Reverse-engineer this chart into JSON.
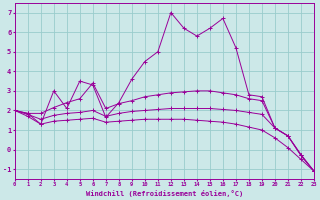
{
  "bg_color": "#cce8e8",
  "line_color": "#990099",
  "grid_color": "#99cccc",
  "xlabel": "Windchill (Refroidissement éolien,°C)",
  "xlim": [
    0,
    23
  ],
  "ylim": [
    -1.5,
    7.5
  ],
  "yticks": [
    -1,
    0,
    1,
    2,
    3,
    4,
    5,
    6,
    7
  ],
  "xticks": [
    0,
    1,
    2,
    3,
    4,
    5,
    6,
    7,
    8,
    9,
    10,
    11,
    12,
    13,
    14,
    15,
    16,
    17,
    18,
    19,
    20,
    21,
    22,
    23
  ],
  "series": [
    {
      "x": [
        0,
        1,
        2,
        3,
        4,
        5,
        6,
        7,
        8,
        9,
        10,
        11,
        12,
        13,
        14,
        15,
        16,
        17,
        18,
        19,
        20,
        21,
        22,
        23
      ],
      "y": [
        2.0,
        1.85,
        1.3,
        3.0,
        2.1,
        3.5,
        3.3,
        1.65,
        2.4,
        3.6,
        4.5,
        5.0,
        7.0,
        6.2,
        5.8,
        6.2,
        6.7,
        5.2,
        2.8,
        2.7,
        1.1,
        0.7,
        -0.25,
        -1.1
      ]
    },
    {
      "x": [
        0,
        1,
        2,
        3,
        4,
        5,
        6,
        7,
        8,
        9,
        10,
        11,
        12,
        13,
        14,
        15,
        16,
        17,
        18,
        19,
        20,
        21,
        22,
        23
      ],
      "y": [
        2.0,
        1.85,
        1.85,
        2.15,
        2.4,
        2.6,
        3.4,
        2.1,
        2.35,
        2.5,
        2.7,
        2.8,
        2.9,
        2.95,
        3.0,
        3.0,
        2.9,
        2.8,
        2.6,
        2.5,
        1.1,
        0.7,
        -0.3,
        -1.1
      ]
    },
    {
      "x": [
        0,
        1,
        2,
        3,
        4,
        5,
        6,
        7,
        8,
        9,
        10,
        11,
        12,
        13,
        14,
        15,
        16,
        17,
        18,
        19,
        20,
        21,
        22,
        23
      ],
      "y": [
        2.0,
        1.8,
        1.55,
        1.75,
        1.85,
        1.9,
        2.0,
        1.7,
        1.85,
        1.95,
        2.0,
        2.05,
        2.1,
        2.1,
        2.1,
        2.1,
        2.05,
        2.0,
        1.9,
        1.8,
        1.1,
        0.7,
        -0.3,
        -1.1
      ]
    },
    {
      "x": [
        0,
        1,
        2,
        3,
        4,
        5,
        6,
        7,
        8,
        9,
        10,
        11,
        12,
        13,
        14,
        15,
        16,
        17,
        18,
        19,
        20,
        21,
        22,
        23
      ],
      "y": [
        2.0,
        1.7,
        1.3,
        1.45,
        1.5,
        1.55,
        1.6,
        1.4,
        1.45,
        1.5,
        1.55,
        1.55,
        1.55,
        1.55,
        1.5,
        1.45,
        1.4,
        1.3,
        1.15,
        1.0,
        0.6,
        0.1,
        -0.5,
        -1.1
      ]
    }
  ]
}
